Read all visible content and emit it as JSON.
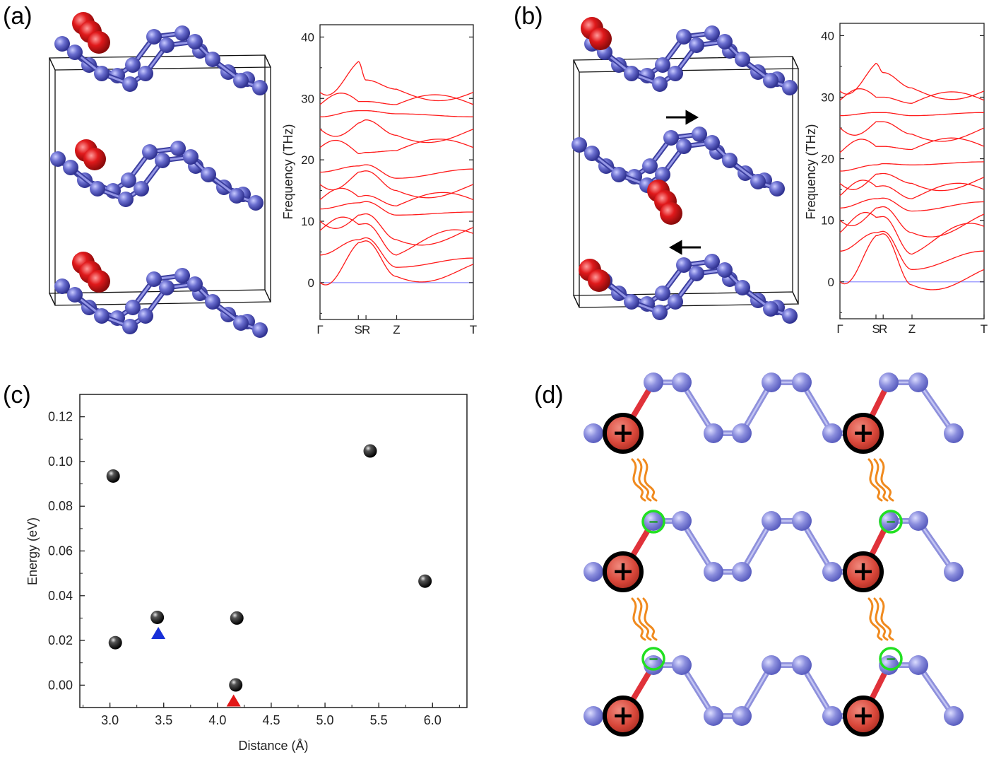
{
  "panels": {
    "a": "(a)",
    "b": "(b)",
    "c": "(c)",
    "d": "(d)"
  },
  "colors": {
    "atom": "#6b6fd0",
    "atom_dark": "#3c3fa0",
    "oxygen": "#e0191b",
    "band": "#ff1a1a",
    "zero_line": "#8f8fff",
    "triangle_blue": "#1830d8",
    "triangle_red": "#e21616",
    "charge_ring": "#21e021",
    "spring": "#f08a1e"
  },
  "phonon_a": {
    "ylabel": "Frequency (THz)",
    "yticks": [
      "0",
      "10",
      "20",
      "30",
      "40"
    ],
    "xticks": [
      "Γ",
      "S",
      "R",
      "Z",
      "T"
    ]
  },
  "phonon_b": {
    "ylabel": "Frequency (THz)",
    "yticks": [
      "0",
      "10",
      "20",
      "30",
      "40"
    ],
    "xticks": [
      "Γ",
      "S",
      "R",
      "Z",
      "T"
    ]
  },
  "charges": {
    "positive": "+",
    "negative": "−"
  },
  "chart_data": [
    {
      "type": "line",
      "panel": "a",
      "ylabel": "Frequency (THz)",
      "ylim": [
        -6,
        42
      ],
      "xticks": [
        "Γ",
        "S",
        "R",
        "Z",
        "T"
      ],
      "series_note_values": "approximate band frequencies (THz) at Γ, S, R, Z, T",
      "bands": [
        [
          0,
          6.5,
          6.8,
          1.0,
          3.0
        ],
        [
          4.5,
          7.0,
          7.3,
          2.5,
          4.0
        ],
        [
          8.5,
          9.5,
          9.6,
          4.5,
          8.0
        ],
        [
          10.0,
          11.0,
          11.2,
          7.0,
          9.0
        ],
        [
          12.0,
          13.0,
          13.2,
          11.0,
          11.5
        ],
        [
          13.5,
          14.0,
          14.2,
          12.5,
          13.5
        ],
        [
          16.0,
          18.0,
          18.2,
          15.0,
          16.0
        ],
        [
          18.0,
          19.0,
          19.2,
          17.0,
          18.5
        ],
        [
          22.0,
          21.0,
          21.2,
          21.5,
          22.0
        ],
        [
          25.0,
          26.0,
          26.5,
          24.0,
          25.0
        ],
        [
          27.0,
          28.0,
          28.0,
          27.5,
          27.0
        ],
        [
          29.0,
          29.5,
          29.5,
          29.0,
          29.0
        ],
        [
          31.0,
          36.0,
          33.0,
          31.5,
          31.0
        ]
      ]
    },
    {
      "type": "line",
      "panel": "b",
      "ylabel": "Frequency (THz)",
      "ylim": [
        -6,
        42
      ],
      "xticks": [
        "Γ",
        "S",
        "R",
        "Z",
        "T"
      ],
      "bands": [
        [
          0,
          7.5,
          7.8,
          -0.5,
          2.0
        ],
        [
          5.0,
          8.0,
          8.2,
          2.0,
          5.0
        ],
        [
          8.0,
          10.5,
          10.6,
          4.5,
          9.0
        ],
        [
          10.0,
          12.0,
          12.2,
          8.0,
          11.0
        ],
        [
          12.0,
          13.5,
          13.6,
          11.5,
          13.0
        ],
        [
          14.0,
          15.5,
          15.6,
          13.5,
          15.0
        ],
        [
          16.0,
          17.5,
          17.6,
          16.0,
          17.0
        ],
        [
          18.0,
          19.0,
          19.2,
          19.0,
          19.5
        ],
        [
          21.0,
          22.0,
          22.0,
          21.5,
          22.0
        ],
        [
          25.0,
          26.0,
          26.0,
          24.0,
          25.0
        ],
        [
          27.0,
          27.5,
          27.5,
          27.0,
          27.5
        ],
        [
          29.5,
          30.0,
          30.0,
          29.0,
          29.5
        ],
        [
          31.0,
          35.5,
          34.0,
          31.5,
          31.0
        ]
      ]
    },
    {
      "type": "scatter",
      "panel": "c",
      "xlabel": "Distance (Å)",
      "ylabel": "Energy (eV)",
      "xlim": [
        2.72,
        6.32
      ],
      "ylim": [
        -0.01,
        0.13
      ],
      "xticks": [
        "3.0",
        "3.5",
        "4.0",
        "4.5",
        "5.0",
        "5.5",
        "6.0"
      ],
      "yticks": [
        "0.00",
        "0.02",
        "0.04",
        "0.06",
        "0.08",
        "0.10",
        "0.12"
      ],
      "series": [
        {
          "marker": "sphere",
          "x": [
            3.03,
            3.05,
            3.44,
            4.17,
            4.18,
            5.42,
            5.93
          ],
          "y": [
            0.0935,
            0.019,
            0.0303,
            0.0001,
            0.03,
            0.1047,
            0.0465
          ]
        },
        {
          "marker": "triangle-blue",
          "x": [
            3.45
          ],
          "y": [
            0.0232
          ]
        },
        {
          "marker": "triangle-red",
          "x": [
            4.15
          ],
          "y": [
            -0.007
          ]
        }
      ]
    }
  ]
}
